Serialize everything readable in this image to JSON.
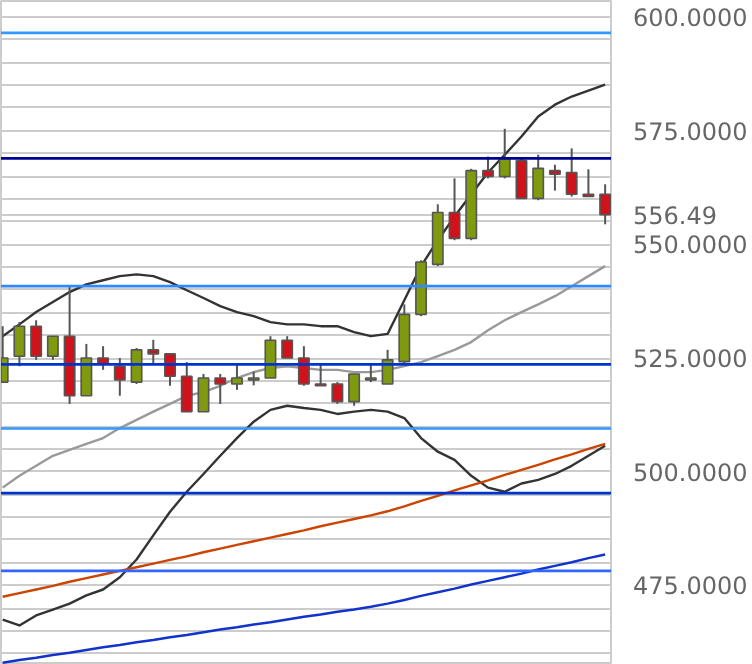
{
  "chart_data": {
    "type": "candlestick",
    "categories": [
      null,
      null,
      null,
      null,
      null,
      null,
      null,
      null,
      null,
      null,
      null,
      null,
      null,
      null,
      null,
      null,
      null,
      null,
      null,
      null,
      null,
      null,
      null,
      null,
      null,
      null,
      null,
      null,
      null,
      null,
      null,
      null,
      null,
      null,
      null,
      null,
      null
    ],
    "ohlc": [
      [
        519.7,
        532.0,
        519.7,
        525.0
      ],
      [
        525.4,
        532.9,
        523.2,
        532.0
      ],
      [
        532.0,
        533.3,
        524.6,
        525.4
      ],
      [
        525.4,
        529.8,
        524.6,
        529.8
      ],
      [
        529.8,
        540.8,
        514.9,
        516.7
      ],
      [
        516.7,
        528.1,
        516.7,
        525.0
      ],
      [
        525.0,
        527.6,
        522.4,
        523.7
      ],
      [
        523.2,
        525.0,
        516.7,
        520.2
      ],
      [
        519.7,
        527.2,
        519.3,
        526.8
      ],
      [
        526.8,
        529.0,
        523.7,
        525.9
      ],
      [
        525.9,
        526.0,
        518.9,
        521.0
      ],
      [
        521.0,
        524.1,
        513.2,
        513.2
      ],
      [
        513.2,
        521.5,
        513.2,
        520.6
      ],
      [
        520.6,
        521.5,
        514.9,
        519.3
      ],
      [
        519.3,
        523.7,
        518.0,
        520.6
      ],
      [
        520.2,
        522.0,
        519.0,
        520.6
      ],
      [
        520.6,
        529.8,
        520.6,
        528.9
      ],
      [
        528.9,
        529.8,
        525.0,
        525.0
      ],
      [
        525.0,
        527.6,
        518.9,
        519.3
      ],
      [
        519.3,
        523.7,
        518.9,
        518.9
      ],
      [
        519.3,
        519.7,
        514.9,
        515.4
      ],
      [
        515.4,
        521.5,
        514.5,
        521.5
      ],
      [
        520.2,
        523.7,
        519.7,
        520.6
      ],
      [
        519.3,
        526.8,
        519.3,
        524.6
      ],
      [
        524.2,
        536.8,
        523.7,
        534.6
      ],
      [
        534.6,
        546.5,
        534.2,
        546.1
      ],
      [
        545.6,
        558.8,
        545.2,
        557.0
      ],
      [
        557.0,
        564.5,
        550.9,
        551.3
      ],
      [
        551.3,
        566.6,
        550.9,
        566.2
      ],
      [
        566.2,
        569.3,
        564.5,
        564.9
      ],
      [
        564.9,
        575.4,
        564.5,
        568.9
      ],
      [
        568.4,
        568.9,
        560.0,
        560.1
      ],
      [
        560.1,
        569.7,
        559.7,
        566.7
      ],
      [
        566.2,
        567.5,
        561.8,
        565.4
      ],
      [
        565.8,
        571.1,
        560.5,
        561.0
      ],
      [
        561.0,
        566.5,
        560.5,
        560.5
      ],
      [
        561.0,
        563.2,
        554.4,
        556.49
      ]
    ],
    "colors": [
      "#7f9a0f",
      "#7f9a0f",
      "#d0121b",
      "#7f9a0f",
      "#d0121b",
      "#7f9a0f",
      "#d0121b",
      "#d0121b",
      "#7f9a0f",
      "#d0121b",
      "#d0121b",
      "#d0121b",
      "#7f9a0f",
      "#d0121b",
      "#7f9a0f",
      "#7f9a0f",
      "#7f9a0f",
      "#d0121b",
      "#d0121b",
      "#d0121b",
      "#d0121b",
      "#7f9a0f",
      "#7f9a0f",
      "#7f9a0f",
      "#7f9a0f",
      "#7f9a0f",
      "#7f9a0f",
      "#d0121b",
      "#7f9a0f",
      "#d0121b",
      "#7f9a0f",
      "#d0121b",
      "#7f9a0f",
      "#d0121b",
      "#d0121b",
      "#d0121b",
      "#d0121b"
    ],
    "series": [
      {
        "type": "line",
        "color": "#333333",
        "values": [
          529.8,
          532.4,
          535.1,
          537.3,
          539.5,
          541.2,
          542.1,
          543.0,
          543.4,
          543.0,
          541.7,
          539.9,
          538.2,
          536.4,
          535.1,
          534.2,
          532.9,
          532.4,
          532.4,
          532.0,
          532.0,
          530.7,
          529.8,
          530.3,
          537.7,
          545.2,
          550.9,
          556.1,
          561.0,
          565.8,
          569.7,
          573.7,
          578.1,
          580.7,
          582.5,
          583.8,
          585.1
        ]
      },
      {
        "type": "line",
        "color": "#999999",
        "values": [
          496.5,
          499.1,
          501.3,
          503.5,
          504.8,
          506.1,
          507.4,
          509.6,
          511.4,
          513.2,
          514.9,
          516.7,
          517.5,
          518.9,
          520.6,
          521.9,
          522.8,
          523.2,
          522.8,
          522.4,
          522.4,
          521.9,
          521.9,
          522.4,
          523.2,
          524.1,
          525.4,
          526.8,
          528.5,
          531.1,
          533.3,
          535.1,
          536.8,
          538.6,
          540.8,
          543.0,
          545.2
        ]
      },
      {
        "type": "line",
        "color": "#333333",
        "values": [
          467.5,
          466.2,
          468.4,
          469.7,
          471.0,
          472.8,
          474.1,
          476.8,
          480.7,
          486.0,
          491.2,
          495.6,
          499.5,
          503.5,
          507.4,
          511.0,
          513.6,
          514.5,
          514.0,
          513.6,
          512.7,
          513.2,
          513.6,
          513.2,
          511.8,
          507.4,
          504.4,
          502.6,
          499.1,
          496.5,
          495.6,
          497.4,
          498.2,
          499.5,
          501.3,
          503.5,
          505.7
        ]
      },
      {
        "type": "line",
        "color": "#cc4400",
        "values": [
          472.5,
          473.3,
          474.1,
          474.9,
          475.8,
          476.6,
          477.4,
          478.2,
          479.0,
          479.8,
          480.6,
          481.4,
          482.3,
          483.1,
          483.9,
          484.7,
          485.5,
          486.3,
          487.1,
          488.0,
          488.8,
          489.6,
          490.4,
          491.3,
          492.4,
          493.6,
          494.7,
          495.9,
          497.0,
          498.1,
          499.3,
          500.4,
          501.5,
          502.7,
          503.8,
          505.0,
          506.1
        ]
      },
      {
        "type": "line",
        "color": "#1133cc",
        "values": [
          458.0,
          458.6,
          459.1,
          459.7,
          460.2,
          460.8,
          461.4,
          461.9,
          462.5,
          463.0,
          463.6,
          464.1,
          464.7,
          465.3,
          465.8,
          466.4,
          466.9,
          467.5,
          468.1,
          468.6,
          469.2,
          469.7,
          470.3,
          471.0,
          471.8,
          472.7,
          473.5,
          474.3,
          475.2,
          476.0,
          476.8,
          477.6,
          478.5,
          479.3,
          480.1,
          481.0,
          481.8
        ]
      }
    ],
    "ref_lines": [
      {
        "axis": "y",
        "value": 596.5,
        "color": "#3399ff"
      },
      {
        "axis": "y",
        "value": 568.9,
        "color": "#000099"
      },
      {
        "axis": "y",
        "value": 540.8,
        "color": "#3388ff"
      },
      {
        "axis": "y",
        "value": 523.6,
        "color": "#0033cc"
      },
      {
        "axis": "y",
        "value": 509.5,
        "color": "#3399ff"
      },
      {
        "axis": "y",
        "value": 495.3,
        "color": "#0033cc"
      },
      {
        "axis": "y",
        "value": 478.2,
        "color": "#3366ff"
      }
    ],
    "ylim": [
      457.5,
      603.5
    ],
    "yticks": [
      {
        "value": 460,
        "label": null
      },
      {
        "value": 465,
        "label": null
      },
      {
        "value": 470,
        "label": null
      },
      {
        "value": 475,
        "label": "475.0000"
      },
      {
        "value": 480,
        "label": null
      },
      {
        "value": 485,
        "label": null
      },
      {
        "value": 490,
        "label": null
      },
      {
        "value": 495,
        "label": null
      },
      {
        "value": 500,
        "label": "500.0000"
      },
      {
        "value": 505,
        "label": null
      },
      {
        "value": 510,
        "label": null
      },
      {
        "value": 515,
        "label": null
      },
      {
        "value": 520,
        "label": null
      },
      {
        "value": 525,
        "label": "525.0000"
      },
      {
        "value": 530,
        "label": null
      },
      {
        "value": 535,
        "label": null
      },
      {
        "value": 540,
        "label": null
      },
      {
        "value": 545,
        "label": null
      },
      {
        "value": 550,
        "label": "550.0000"
      },
      {
        "value": 555,
        "label": null
      },
      {
        "value": 556.49,
        "label": "556.49"
      },
      {
        "value": 560,
        "label": null
      },
      {
        "value": 565,
        "label": null
      },
      {
        "value": 570,
        "label": null
      },
      {
        "value": 575,
        "label": "575.0000"
      },
      {
        "value": 580,
        "label": null
      },
      {
        "value": 585,
        "label": null
      },
      {
        "value": 590,
        "label": null
      },
      {
        "value": 595,
        "label": null
      },
      {
        "value": 600,
        "label": "600.0000"
      }
    ],
    "grid": "y",
    "tick_labels": "y"
  }
}
